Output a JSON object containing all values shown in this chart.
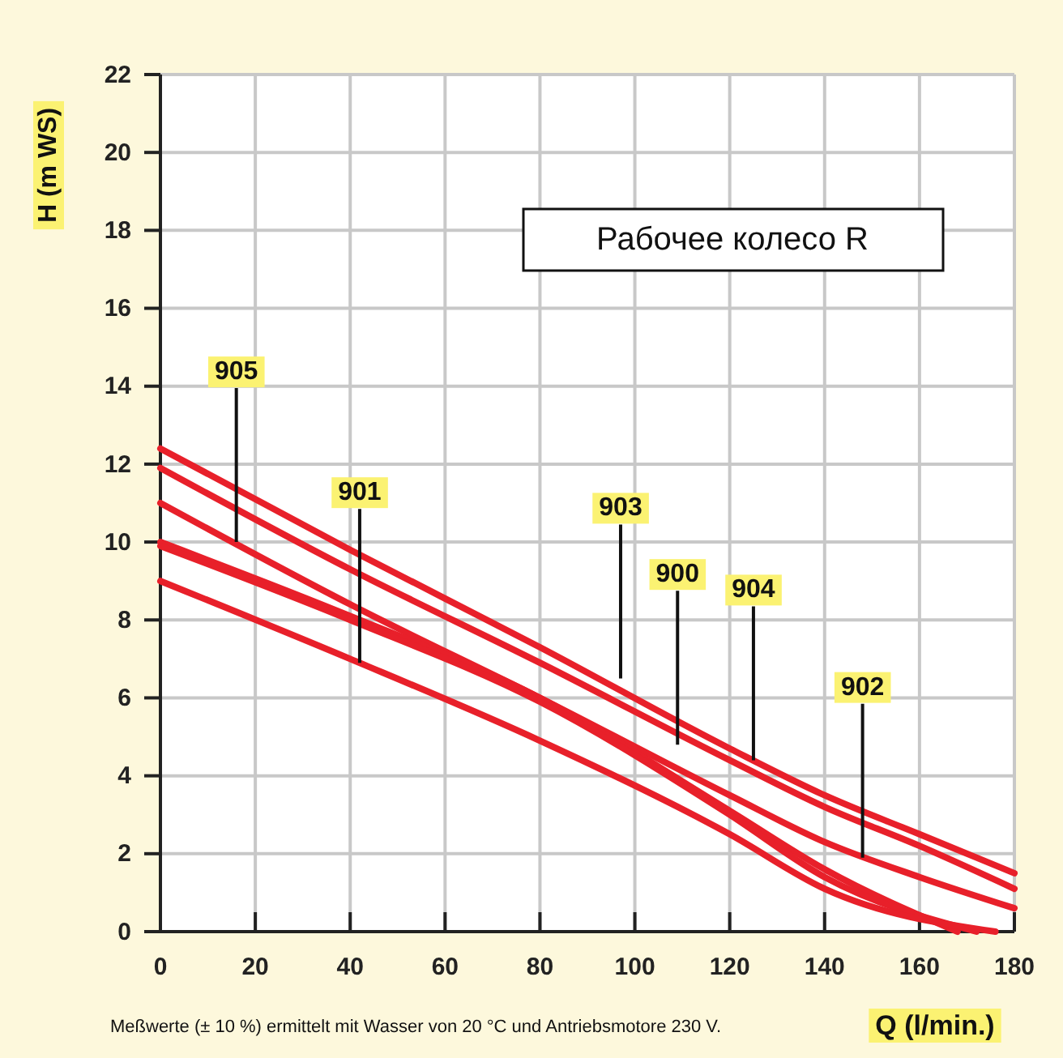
{
  "chart_data": {
    "type": "line",
    "xlabel": "Q (l/min.)",
    "ylabel": "H (m WS)",
    "xlim": [
      0,
      180
    ],
    "ylim": [
      0,
      22
    ],
    "xticks": [
      0,
      20,
      40,
      60,
      80,
      100,
      120,
      140,
      160,
      180
    ],
    "yticks": [
      0,
      2,
      4,
      6,
      8,
      10,
      12,
      14,
      16,
      18,
      20,
      22
    ],
    "grid": true,
    "marker": "none",
    "line_style": "solid",
    "series": [
      {
        "color": "#e8202a",
        "x": [
          0,
          40,
          80,
          120,
          140,
          160,
          180
        ],
        "values": [
          12.4,
          9.8,
          7.3,
          4.7,
          3.5,
          2.5,
          1.5
        ]
      },
      {
        "color": "#e8202a",
        "x": [
          0,
          40,
          80,
          120,
          140,
          160,
          180
        ],
        "values": [
          11.9,
          9.3,
          6.9,
          4.4,
          3.2,
          2.2,
          1.1
        ]
      },
      {
        "color": "#e8202a",
        "x": [
          0,
          40,
          80,
          120,
          140,
          160,
          180
        ],
        "values": [
          11.0,
          8.4,
          6.0,
          3.5,
          2.3,
          1.4,
          0.6
        ]
      },
      {
        "color": "#e8202a",
        "x": [
          0,
          40,
          80,
          120,
          140,
          168
        ],
        "values": [
          10.0,
          8.1,
          6.0,
          3.1,
          1.6,
          0
        ]
      },
      {
        "color": "#e8202a",
        "x": [
          0,
          40,
          80,
          120,
          140,
          172
        ],
        "values": [
          9.9,
          8.0,
          5.9,
          3.0,
          1.4,
          0
        ]
      },
      {
        "color": "#e8202a",
        "x": [
          0,
          40,
          80,
          120,
          140,
          176
        ],
        "values": [
          9.0,
          7.0,
          4.9,
          2.5,
          1.1,
          0
        ]
      }
    ],
    "annotations": [
      "Рабочее колесо R",
      "Meßwerte (± 10 %) ermittelt mit Wasser von 20 °C und Antriebsmotore 230 V.",
      {
        "text": "905",
        "x": 16,
        "y": 10.0
      },
      {
        "text": "901",
        "x": 42,
        "y": 6.9
      },
      {
        "text": "903",
        "x": 97,
        "y": 6.5
      },
      {
        "text": "900",
        "x": 109,
        "y": 4.8
      },
      {
        "text": "904",
        "x": 125,
        "y": 4.4
      },
      {
        "text": "902",
        "x": 148,
        "y": 1.9
      }
    ]
  }
}
